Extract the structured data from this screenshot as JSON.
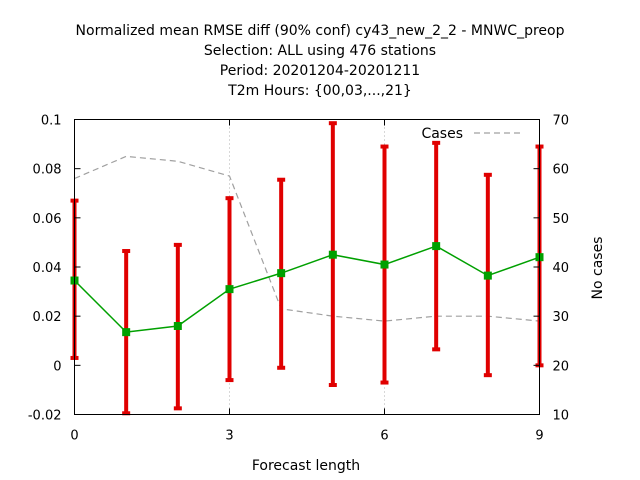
{
  "chart_data": {
    "type": "line",
    "title_lines": [
      "Normalized mean RMSE diff (90% conf) cy43_new_2_2 - MNWC_preop",
      "Selection: ALL using   476 stations",
      "Period: 20201204-20201211",
      "T2m   Hours: {00,03,...,21}"
    ],
    "xlabel": "Forecast length",
    "ylabel_left": "",
    "ylabel_right": "No cases",
    "xlim": [
      0,
      9
    ],
    "ylim": [
      -0.02,
      0.1
    ],
    "y2lim": [
      10,
      70
    ],
    "x_ticks": [
      0,
      3,
      6,
      9
    ],
    "y_ticks": [
      -0.02,
      0,
      0.02,
      0.04,
      0.06,
      0.08,
      0.1
    ],
    "y_tick_labels": [
      "-0.02",
      "0",
      "0.02",
      "0.04",
      "0.06",
      "0.08",
      "0.1"
    ],
    "y2_ticks": [
      10,
      20,
      30,
      40,
      50,
      60,
      70
    ],
    "grid": "x-only-dotted",
    "legend_position": "top-right",
    "series": [
      {
        "name": "",
        "role": "mean",
        "color": "#00a000",
        "x": [
          0,
          1,
          2,
          3,
          4,
          5,
          6,
          7,
          8,
          9
        ],
        "y": [
          0.0345,
          0.0135,
          0.016,
          0.031,
          0.0375,
          0.045,
          0.041,
          0.0485,
          0.0365,
          0.044
        ],
        "err_low": [
          0.003,
          -0.0195,
          -0.0175,
          -0.006,
          -0.001,
          -0.008,
          -0.007,
          0.0065,
          -0.004,
          0.0
        ],
        "err_high": [
          0.067,
          0.0465,
          0.049,
          0.068,
          0.0755,
          0.0985,
          0.089,
          0.0905,
          0.0775,
          0.089
        ],
        "errorbar_color": "#e00000"
      },
      {
        "name": "Cases",
        "role": "cases",
        "axis": "right",
        "color": "#a0a0a0",
        "x": [
          0,
          1,
          2,
          3,
          4,
          5,
          6,
          7,
          8,
          9
        ],
        "y": [
          58,
          62.5,
          61.5,
          58.5,
          31.5,
          30,
          29,
          30,
          30,
          29
        ]
      }
    ]
  }
}
